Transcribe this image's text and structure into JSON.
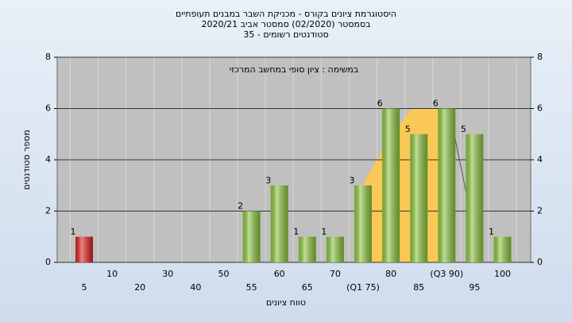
{
  "chart_data": {
    "type": "bar",
    "title": "היסטוגרמת ציונים בקורס - מכניקת השבר במבנים תעופתיים",
    "subtitle": [
      "בסמסטר (02/2020) סמסטר אביב 2020/21",
      "סטודנטים רשומים - 35"
    ],
    "annotation": "במשימה : ציון סופי במחשב המרכזי",
    "x_label": "טווח ציונים",
    "y_label": "מספר סטודנטים",
    "categories": [
      "5",
      "10",
      "20",
      "30",
      "40",
      "50",
      "55",
      "60",
      "65",
      "70",
      "(Q1 75)",
      "80",
      "85",
      "(Q3 90)",
      "95",
      "100"
    ],
    "values": [
      1,
      0,
      0,
      0,
      0,
      0,
      2,
      3,
      1,
      1,
      3,
      6,
      5,
      6,
      5,
      1
    ],
    "colors": [
      "#e02020",
      "#8dc63f",
      "#8dc63f",
      "#8dc63f",
      "#8dc63f",
      "#8dc63f",
      "#8dc63f",
      "#8dc63f",
      "#8dc63f",
      "#8dc63f",
      "#8dc63f",
      "#8dc63f",
      "#8dc63f",
      "#8dc63f",
      "#8dc63f",
      "#8dc63f"
    ],
    "ylim": [
      0,
      8
    ],
    "yticks": [
      0,
      2,
      4,
      6,
      8
    ],
    "y2lim": [
      0,
      8
    ],
    "y2ticks": [
      0,
      2,
      4,
      6,
      8
    ],
    "grid": true
  }
}
